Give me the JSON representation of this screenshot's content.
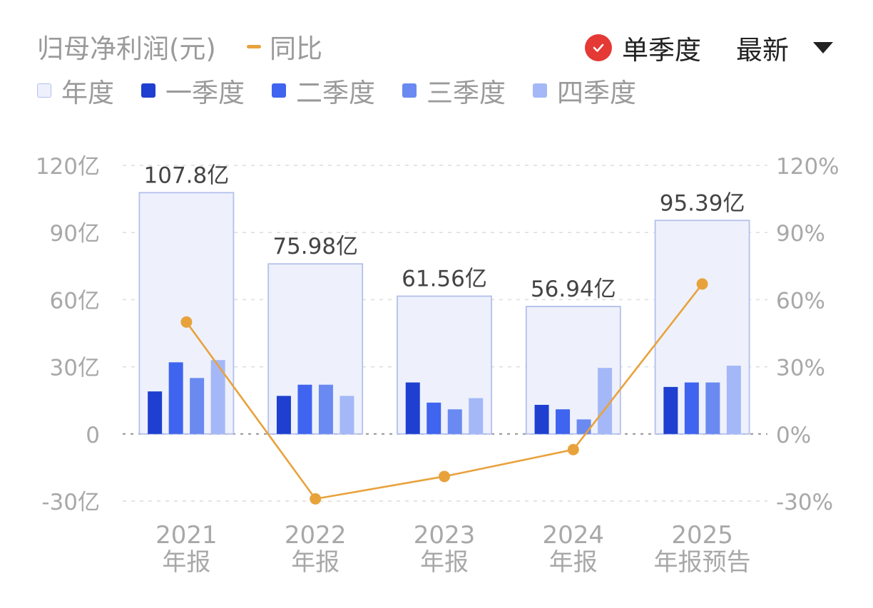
{
  "header": {
    "title": "归母净利润(元)",
    "yoy_label": "同比",
    "mode_label": "单季度",
    "sort_label": "最新"
  },
  "legend": [
    {
      "label": "年度",
      "color": "#eef1fc",
      "border": "#b3c0ec"
    },
    {
      "label": "一季度",
      "color": "#1e3fcf"
    },
    {
      "label": "二季度",
      "color": "#3f64ef"
    },
    {
      "label": "三季度",
      "color": "#6a8af1"
    },
    {
      "label": "四季度",
      "color": "#a4b8f7"
    }
  ],
  "colors": {
    "annual_fill": "#eef1fc",
    "annual_stroke": "#b3c0ec",
    "line": "#e8a23c",
    "axis_text": "#a8a8a8",
    "value_label": "#444444"
  },
  "chart_data": {
    "type": "bar",
    "categories": [
      {
        "year": "2021",
        "kind": "年报"
      },
      {
        "year": "2022",
        "kind": "年报"
      },
      {
        "year": "2023",
        "kind": "年报"
      },
      {
        "year": "2024",
        "kind": "年报"
      },
      {
        "year": "2025",
        "kind": "年报预告"
      }
    ],
    "annual": {
      "name": "年度",
      "values": [
        107.8,
        75.98,
        61.56,
        56.94,
        95.39
      ],
      "labels": [
        "107.8亿",
        "75.98亿",
        "61.56亿",
        "56.94亿",
        "95.39亿"
      ]
    },
    "quarters": [
      {
        "name": "一季度",
        "values": [
          19,
          17,
          23,
          13,
          21
        ]
      },
      {
        "name": "二季度",
        "values": [
          32,
          22,
          14,
          11,
          23
        ]
      },
      {
        "name": "三季度",
        "values": [
          25,
          22,
          11,
          6.5,
          23
        ]
      },
      {
        "name": "四季度",
        "values": [
          33,
          17,
          16,
          29.5,
          30.5
        ]
      }
    ],
    "yoy": {
      "name": "同比",
      "values": [
        50,
        -29,
        -19,
        -7,
        67
      ]
    },
    "y_left": {
      "ticks": [
        "120亿",
        "90亿",
        "60亿",
        "30亿",
        "0",
        "-30亿"
      ],
      "values": [
        120,
        90,
        60,
        30,
        0,
        -30
      ],
      "range": [
        -30,
        120
      ]
    },
    "y_right": {
      "ticks": [
        "120%",
        "90%",
        "60%",
        "30%",
        "0%",
        "-30%"
      ],
      "values": [
        120,
        90,
        60,
        30,
        0,
        -30
      ],
      "range": [
        -30,
        120
      ]
    },
    "grid": true
  }
}
